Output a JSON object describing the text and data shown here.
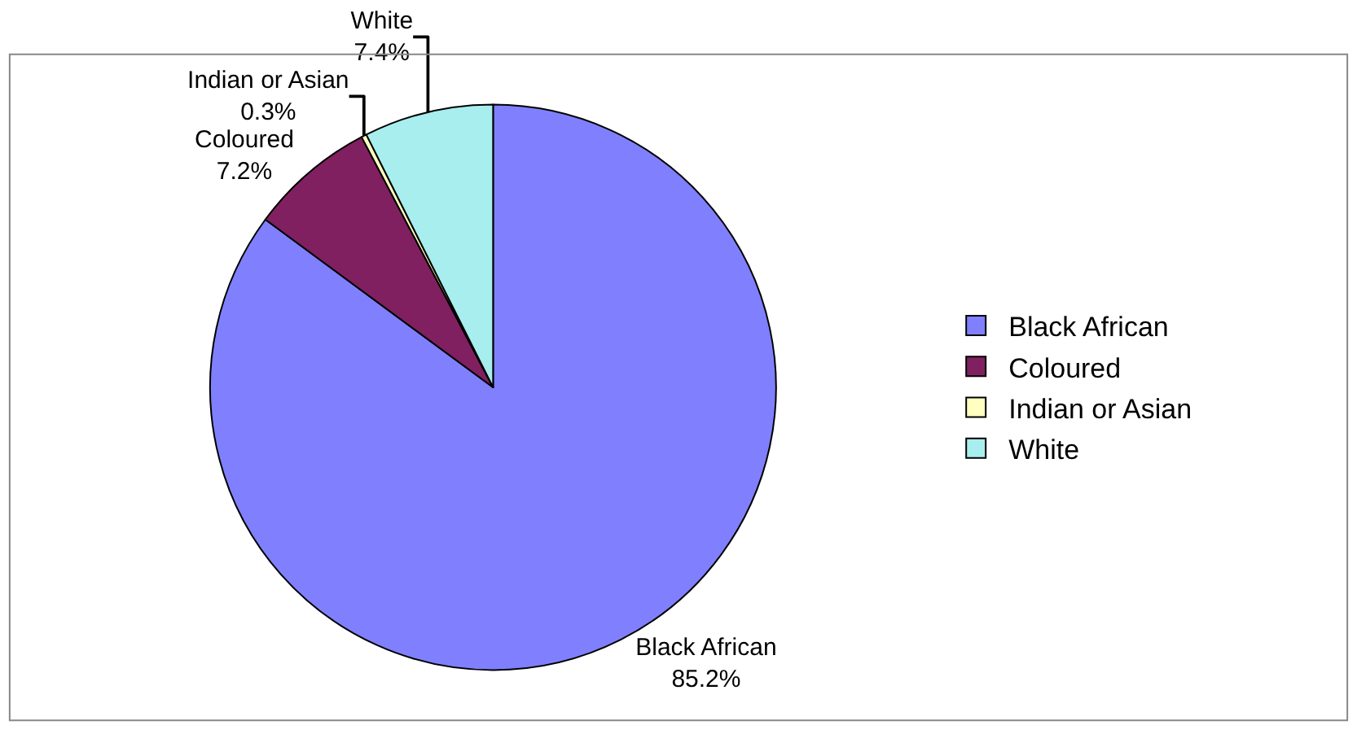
{
  "chart_data": {
    "type": "pie",
    "categories": [
      "Black African",
      "Coloured",
      "Indian or Asian",
      "White"
    ],
    "values": [
      85.2,
      7.2,
      0.3,
      7.4
    ],
    "value_labels": [
      "85.2%",
      "7.2%",
      "0.3%",
      "7.4%"
    ],
    "colors": [
      "#8080ff",
      "#802060",
      "#ffffc0",
      "#a8eeee"
    ],
    "legend": "right"
  }
}
